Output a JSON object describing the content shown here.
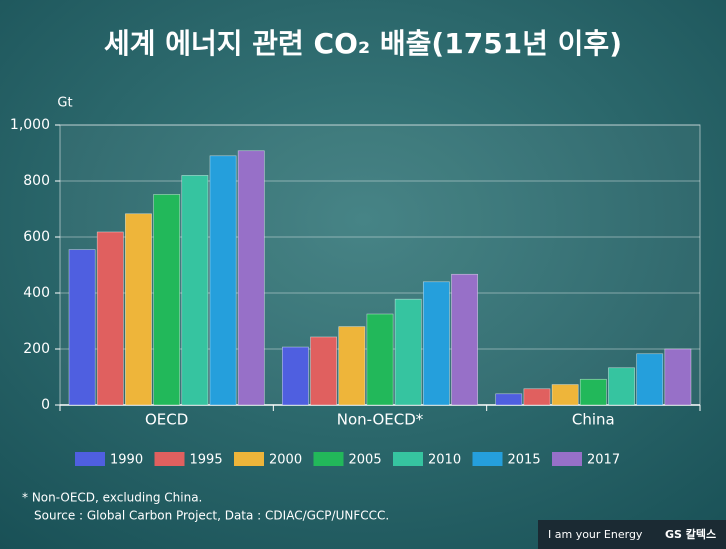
{
  "chart_data": {
    "type": "bar",
    "title": "세계 에너지 관련 CO₂ 배출(1751년 이후)",
    "y_label": "Gt",
    "categories": [
      "OECD",
      "Non-OECD*",
      "China"
    ],
    "series": [
      {
        "name": "1990",
        "color": "#4f5fe0",
        "values": [
          555,
          207,
          40
        ]
      },
      {
        "name": "1995",
        "color": "#e0605f",
        "values": [
          618,
          243,
          58
        ]
      },
      {
        "name": "2000",
        "color": "#eeb53a",
        "values": [
          683,
          280,
          73
        ]
      },
      {
        "name": "2005",
        "color": "#22b85a",
        "values": [
          752,
          325,
          92
        ]
      },
      {
        "name": "2010",
        "color": "#36c4a0",
        "values": [
          820,
          378,
          133
        ]
      },
      {
        "name": "2015",
        "color": "#259fdc",
        "values": [
          890,
          440,
          183
        ]
      },
      {
        "name": "2017",
        "color": "#9770c8",
        "values": [
          908,
          467,
          200
        ]
      }
    ],
    "ylim": [
      0,
      1000
    ],
    "yticks": [
      0,
      200,
      400,
      600,
      800,
      {
        "value": 1000,
        "label": "1,000"
      }
    ],
    "grid": true,
    "footnotes": [
      "* Non-OECD, excluding China.",
      "Source : Global Carbon Project, Data : CDIAC/GCP/UNFCCC."
    ],
    "brand": [
      "I am your Energy",
      "GS 칼텍스"
    ]
  }
}
